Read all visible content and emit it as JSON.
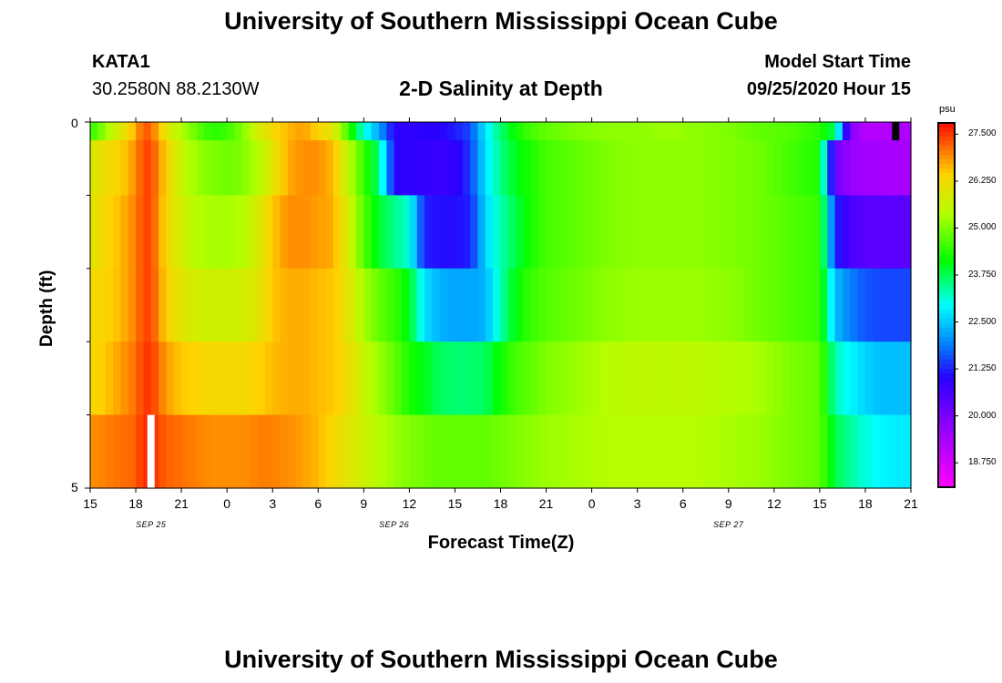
{
  "page": {
    "title": "University of Southern Mississippi Ocean Cube",
    "footer_title": "University of Southern Mississippi Ocean Cube"
  },
  "station": {
    "name": "KATA1",
    "coords": "30.2580N 88.2130W"
  },
  "model": {
    "start_label": "Model Start Time",
    "start_value": "09/25/2020 Hour 15"
  },
  "chart_data": {
    "type": "heatmap",
    "title": "2-D Salinity at Depth",
    "xlabel": "Forecast Time(Z)",
    "ylabel": "Depth (ft)",
    "units": "psu",
    "x_tick_labels": [
      "15",
      "18",
      "21",
      "0",
      "3",
      "6",
      "9",
      "12",
      "15",
      "18",
      "21",
      "0",
      "3",
      "6",
      "9",
      "12",
      "15",
      "18",
      "21"
    ],
    "x_date_labels": [
      {
        "label": "SEP 25",
        "at_hour": 4
      },
      {
        "label": "SEP 26",
        "at_hour": 20
      },
      {
        "label": "SEP 27",
        "at_hour": 42
      }
    ],
    "x_range_hours": [
      0,
      54
    ],
    "y_tick_labels": [
      "0",
      "5"
    ],
    "y_range": [
      0,
      5
    ],
    "depth_layers": [
      0.0,
      0.5,
      1.5,
      2.5,
      3.5,
      4.5
    ],
    "colorbar": {
      "min": 18.1,
      "max": 27.8,
      "tick_labels": [
        "27.500",
        "26.250",
        "25.000",
        "23.750",
        "22.500",
        "21.250",
        "20.000",
        "18.750"
      ],
      "tick_values": [
        27.5,
        26.25,
        25.0,
        23.75,
        22.5,
        21.25,
        20.0,
        18.75
      ]
    },
    "key_hours": [
      0,
      1,
      2,
      3,
      3.5,
      4,
      5,
      6,
      7,
      8,
      9,
      10,
      11,
      12,
      13,
      14,
      15,
      16,
      17,
      18,
      19,
      20,
      21,
      22,
      23,
      24,
      25,
      26,
      27,
      28,
      29,
      30,
      32,
      34,
      36,
      38,
      40,
      42,
      44,
      46,
      48,
      49,
      50,
      51,
      52,
      53,
      54
    ],
    "salinity_psu": [
      [
        24.4,
        25.2,
        25.9,
        26.7,
        27.3,
        27.2,
        26.0,
        25.4,
        24.8,
        24.4,
        24.5,
        25.0,
        25.8,
        26.3,
        26.6,
        26.8,
        26.4,
        26.0,
        24.5,
        23.1,
        22.2,
        21.0,
        20.9,
        21.0,
        21.0,
        21.2,
        21.5,
        22.8,
        23.6,
        24.2,
        24.6,
        24.8,
        25.0,
        25.1,
        25.1,
        25.2,
        25.1,
        25.0,
        24.8,
        24.7,
        24.4,
        23.7,
        19.9,
        19.2,
        19.2,
        19.3,
        19.3
      ],
      [
        25.9,
        26.2,
        26.4,
        26.9,
        27.4,
        27.4,
        26.4,
        25.6,
        25.2,
        25.0,
        24.9,
        25.0,
        25.4,
        26.0,
        26.7,
        26.9,
        26.9,
        26.6,
        25.5,
        24.5,
        23.6,
        21.0,
        20.9,
        20.9,
        20.8,
        20.9,
        21.4,
        22.7,
        23.5,
        24.0,
        24.3,
        24.6,
        24.8,
        25.0,
        25.1,
        25.1,
        25.1,
        25.0,
        24.9,
        24.6,
        24.3,
        20.2,
        19.6,
        19.5,
        19.4,
        19.4,
        19.4
      ],
      [
        26.0,
        26.3,
        26.6,
        27.0,
        27.4,
        27.4,
        26.3,
        25.8,
        25.4,
        25.3,
        25.3,
        25.4,
        25.8,
        26.5,
        26.9,
        26.9,
        26.8,
        26.7,
        25.8,
        24.7,
        23.9,
        23.5,
        23.1,
        21.2,
        21.1,
        21.1,
        21.2,
        22.6,
        23.3,
        23.8,
        24.3,
        24.6,
        24.8,
        25.0,
        25.1,
        25.1,
        25.1,
        25.0,
        24.9,
        24.7,
        24.5,
        21.3,
        20.6,
        20.4,
        20.4,
        20.4,
        20.4
      ],
      [
        26.2,
        26.4,
        26.6,
        27.0,
        27.4,
        27.4,
        26.4,
        26.0,
        25.8,
        25.7,
        25.7,
        25.8,
        26.0,
        26.5,
        26.7,
        26.7,
        26.6,
        26.5,
        26.0,
        25.3,
        24.8,
        24.5,
        24.0,
        22.7,
        22.3,
        22.2,
        22.2,
        22.3,
        23.3,
        24.1,
        24.5,
        24.7,
        24.9,
        25.1,
        25.2,
        25.2,
        25.2,
        25.1,
        24.9,
        24.7,
        24.5,
        22.4,
        21.9,
        21.6,
        21.5,
        21.5,
        21.5
      ],
      [
        26.3,
        26.5,
        26.8,
        27.1,
        27.5,
        27.5,
        26.8,
        26.5,
        26.4,
        26.3,
        26.3,
        26.3,
        26.4,
        26.6,
        26.7,
        26.7,
        26.6,
        26.5,
        26.2,
        25.6,
        25.2,
        24.8,
        24.3,
        24.0,
        23.7,
        23.6,
        23.6,
        23.7,
        24.2,
        24.6,
        24.8,
        25.0,
        25.2,
        25.4,
        25.5,
        25.5,
        25.5,
        25.4,
        25.3,
        25.0,
        24.8,
        23.3,
        22.9,
        22.6,
        22.4,
        22.4,
        22.4
      ],
      [
        26.9,
        27.0,
        27.1,
        27.2,
        27.6,
        27.6,
        27.2,
        27.1,
        27.0,
        26.9,
        26.9,
        26.9,
        27.0,
        27.0,
        26.9,
        26.8,
        26.6,
        26.3,
        26.0,
        25.7,
        25.4,
        25.2,
        25.0,
        24.9,
        24.8,
        24.8,
        24.8,
        24.8,
        24.9,
        25.0,
        25.1,
        25.2,
        25.3,
        25.4,
        25.4,
        25.4,
        25.4,
        25.3,
        25.2,
        25.0,
        24.8,
        23.8,
        23.4,
        23.1,
        22.9,
        22.8,
        22.8
      ]
    ],
    "missing_markers": [
      {
        "hour": 4,
        "layer": 5,
        "color": "#ffffff"
      },
      {
        "hour": 53,
        "layer": 0,
        "color": "#000000"
      }
    ]
  }
}
